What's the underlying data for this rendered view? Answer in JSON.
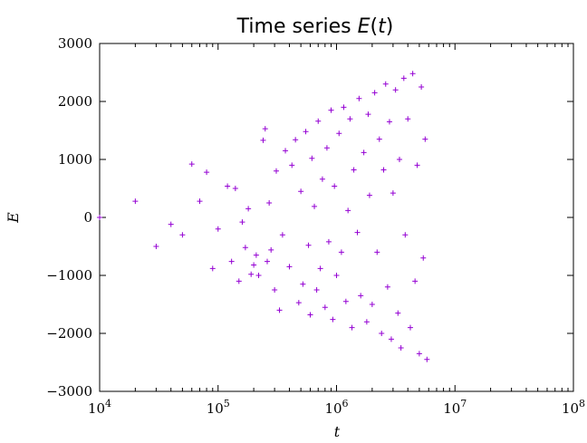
{
  "chart_data": {
    "type": "scatter",
    "title": "Time series E(t)",
    "xlabel": "t",
    "ylabel": "E",
    "xscale": "log",
    "xlim": [
      10000,
      100000000
    ],
    "ylim": [
      -3000,
      3000
    ],
    "x_ticks": [
      {
        "value": 10000,
        "label": "10^4"
      },
      {
        "value": 100000,
        "label": "10^5"
      },
      {
        "value": 1000000,
        "label": "10^6"
      },
      {
        "value": 10000000,
        "label": "10^7"
      },
      {
        "value": 100000000,
        "label": "10^8"
      }
    ],
    "y_ticks": [
      3000,
      2000,
      1000,
      0,
      -1000,
      -2000,
      -3000
    ],
    "y_tick_labels": [
      "3000",
      "2000",
      "1000",
      "0",
      "−1000",
      "−2000",
      "−3000"
    ],
    "marker": "plus",
    "series": [
      {
        "color": "#9400D3",
        "points": [
          [
            10000,
            0
          ],
          [
            20000,
            280
          ],
          [
            30000,
            -500
          ],
          [
            40000,
            -120
          ],
          [
            50000,
            -300
          ],
          [
            60000,
            920
          ],
          [
            70000,
            280
          ],
          [
            80000,
            780
          ],
          [
            90000,
            -880
          ],
          [
            100000,
            -200
          ],
          [
            120000,
            540
          ],
          [
            130000,
            -760
          ],
          [
            140000,
            500
          ],
          [
            150000,
            -1100
          ],
          [
            160000,
            -80
          ],
          [
            170000,
            -520
          ],
          [
            180000,
            150
          ],
          [
            190000,
            -980
          ],
          [
            200000,
            -820
          ],
          [
            210000,
            -650
          ],
          [
            220000,
            -1000
          ],
          [
            240000,
            1330
          ],
          [
            250000,
            1530
          ],
          [
            260000,
            -760
          ],
          [
            270000,
            250
          ],
          [
            280000,
            -560
          ],
          [
            300000,
            -1250
          ],
          [
            310000,
            800
          ],
          [
            330000,
            -1600
          ],
          [
            350000,
            -300
          ],
          [
            370000,
            1150
          ],
          [
            400000,
            -850
          ],
          [
            420000,
            900
          ],
          [
            450000,
            1340
          ],
          [
            480000,
            -1470
          ],
          [
            500000,
            450
          ],
          [
            520000,
            -1150
          ],
          [
            550000,
            1480
          ],
          [
            580000,
            -480
          ],
          [
            600000,
            -1680
          ],
          [
            620000,
            1020
          ],
          [
            650000,
            190
          ],
          [
            680000,
            -1250
          ],
          [
            700000,
            1660
          ],
          [
            730000,
            -880
          ],
          [
            760000,
            660
          ],
          [
            800000,
            -1550
          ],
          [
            830000,
            1200
          ],
          [
            860000,
            -420
          ],
          [
            900000,
            1850
          ],
          [
            930000,
            -1760
          ],
          [
            960000,
            540
          ],
          [
            1000000,
            -1000
          ],
          [
            1050000,
            1450
          ],
          [
            1100000,
            -600
          ],
          [
            1150000,
            1900
          ],
          [
            1200000,
            -1450
          ],
          [
            1250000,
            120
          ],
          [
            1300000,
            1700
          ],
          [
            1350000,
            -1900
          ],
          [
            1400000,
            820
          ],
          [
            1500000,
            -260
          ],
          [
            1550000,
            2050
          ],
          [
            1600000,
            -1350
          ],
          [
            1700000,
            1120
          ],
          [
            1800000,
            -1800
          ],
          [
            1850000,
            1780
          ],
          [
            1900000,
            380
          ],
          [
            2000000,
            -1500
          ],
          [
            2100000,
            2150
          ],
          [
            2200000,
            -600
          ],
          [
            2300000,
            1350
          ],
          [
            2400000,
            -2000
          ],
          [
            2500000,
            820
          ],
          [
            2600000,
            2300
          ],
          [
            2700000,
            -1200
          ],
          [
            2800000,
            1650
          ],
          [
            2900000,
            -2100
          ],
          [
            3000000,
            420
          ],
          [
            3150000,
            2200
          ],
          [
            3300000,
            -1650
          ],
          [
            3400000,
            1000
          ],
          [
            3500000,
            -2250
          ],
          [
            3700000,
            2400
          ],
          [
            3800000,
            -300
          ],
          [
            4000000,
            1700
          ],
          [
            4200000,
            -1900
          ],
          [
            4400000,
            2480
          ],
          [
            4600000,
            -1100
          ],
          [
            4800000,
            900
          ],
          [
            5000000,
            -2350
          ],
          [
            5200000,
            2250
          ],
          [
            5400000,
            -700
          ],
          [
            5600000,
            1350
          ],
          [
            5800000,
            -2450
          ]
        ]
      }
    ]
  }
}
